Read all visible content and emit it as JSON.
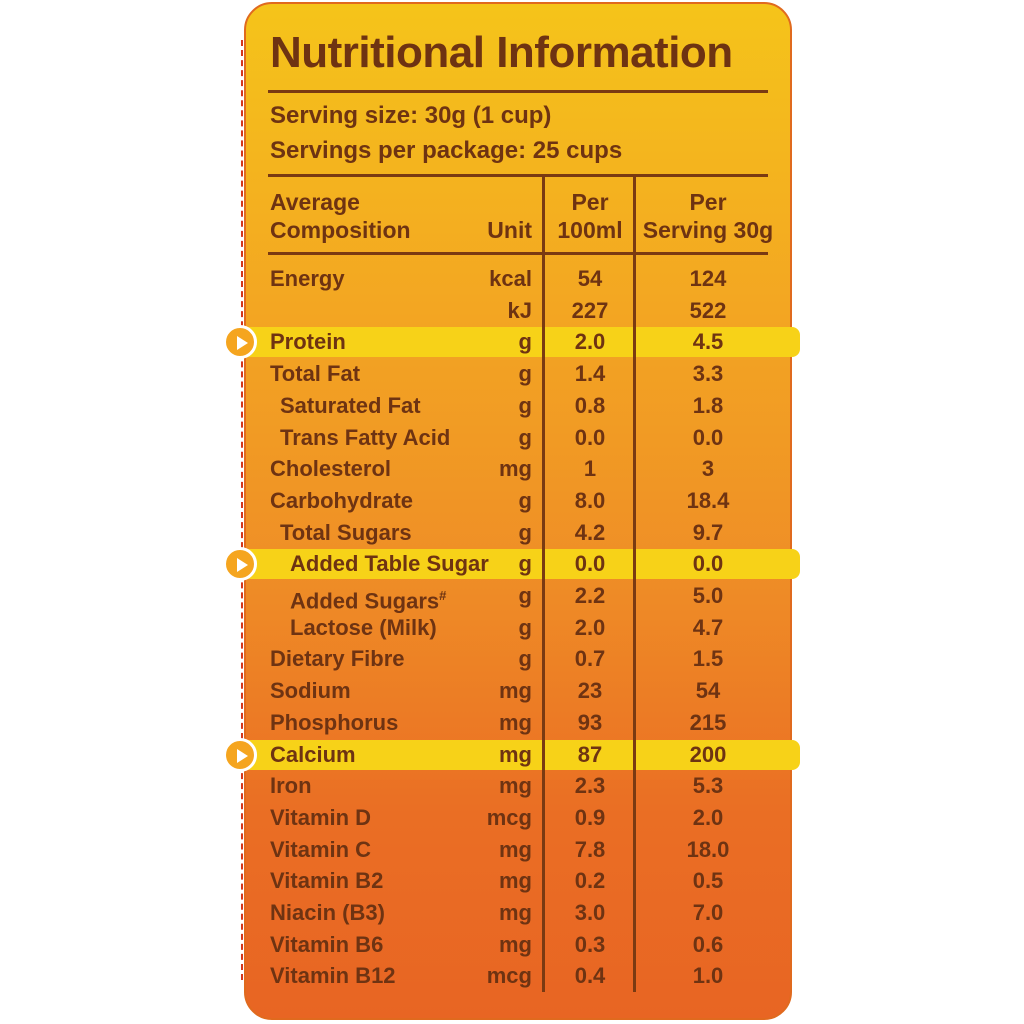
{
  "title": "Nutritional Information",
  "serving_size": "Serving size: 30g (1 cup)",
  "servings_per_package": "Servings per package: 25 cups",
  "headers": {
    "composition_line1": "Average",
    "composition_line2": "Composition",
    "unit": "Unit",
    "per100_line1": "Per",
    "per100_line2": "100ml",
    "perserv_line1": "Per",
    "perserv_line2": "Serving 30g"
  },
  "rows": [
    {
      "name": "Energy",
      "unit": "kcal",
      "per100": "54",
      "per_serving": "124",
      "indent": 0,
      "highlight": false
    },
    {
      "name": "",
      "unit": "kJ",
      "per100": "227",
      "per_serving": "522",
      "indent": 0,
      "highlight": false
    },
    {
      "name": "Protein",
      "unit": "g",
      "per100": "2.0",
      "per_serving": "4.5",
      "indent": 0,
      "highlight": true
    },
    {
      "name": "Total Fat",
      "unit": "g",
      "per100": "1.4",
      "per_serving": "3.3",
      "indent": 0,
      "highlight": false
    },
    {
      "name": "Saturated Fat",
      "unit": "g",
      "per100": "0.8",
      "per_serving": "1.8",
      "indent": 1,
      "highlight": false
    },
    {
      "name": "Trans Fatty Acid",
      "unit": "g",
      "per100": "0.0",
      "per_serving": "0.0",
      "indent": 1,
      "highlight": false
    },
    {
      "name": "Cholesterol",
      "unit": "mg",
      "per100": "1",
      "per_serving": "3",
      "indent": 0,
      "highlight": false
    },
    {
      "name": "Carbohydrate",
      "unit": "g",
      "per100": "8.0",
      "per_serving": "18.4",
      "indent": 0,
      "highlight": false
    },
    {
      "name": "Total Sugars",
      "unit": "g",
      "per100": "4.2",
      "per_serving": "9.7",
      "indent": 1,
      "highlight": false
    },
    {
      "name": "Added Table Sugar",
      "unit": "g",
      "per100": "0.0",
      "per_serving": "0.0",
      "indent": 2,
      "highlight": true
    },
    {
      "name": "Added Sugars",
      "sup": "#",
      "unit": "g",
      "per100": "2.2",
      "per_serving": "5.0",
      "indent": 2,
      "highlight": false
    },
    {
      "name": "Lactose (Milk)",
      "unit": "g",
      "per100": "2.0",
      "per_serving": "4.7",
      "indent": 2,
      "highlight": false
    },
    {
      "name": "Dietary Fibre",
      "unit": "g",
      "per100": "0.7",
      "per_serving": "1.5",
      "indent": 0,
      "highlight": false
    },
    {
      "name": "Sodium",
      "unit": "mg",
      "per100": "23",
      "per_serving": "54",
      "indent": 0,
      "highlight": false
    },
    {
      "name": "Phosphorus",
      "unit": "mg",
      "per100": "93",
      "per_serving": "215",
      "indent": 0,
      "highlight": false
    },
    {
      "name": "Calcium",
      "unit": "mg",
      "per100": "87",
      "per_serving": "200",
      "indent": 0,
      "highlight": true
    },
    {
      "name": "Iron",
      "unit": "mg",
      "per100": "2.3",
      "per_serving": "5.3",
      "indent": 0,
      "highlight": false
    },
    {
      "name": "Vitamin D",
      "unit": "mcg",
      "per100": "0.9",
      "per_serving": "2.0",
      "indent": 0,
      "highlight": false
    },
    {
      "name": "Vitamin C",
      "unit": "mg",
      "per100": "7.8",
      "per_serving": "18.0",
      "indent": 0,
      "highlight": false
    },
    {
      "name": "Vitamin B2",
      "unit": "mg",
      "per100": "0.2",
      "per_serving": "0.5",
      "indent": 0,
      "highlight": false
    },
    {
      "name": "Niacin (B3)",
      "unit": "mg",
      "per100": "3.0",
      "per_serving": "7.0",
      "indent": 0,
      "highlight": false
    },
    {
      "name": "Vitamin B6",
      "unit": "mg",
      "per100": "0.3",
      "per_serving": "0.6",
      "indent": 0,
      "highlight": false
    },
    {
      "name": "Vitamin B12",
      "unit": "mcg",
      "per100": "0.4",
      "per_serving": "1.0",
      "indent": 0,
      "highlight": false
    }
  ],
  "colors": {
    "text": "#6e3312",
    "highlight": "#f7d218",
    "marker": "#f5a51f"
  }
}
